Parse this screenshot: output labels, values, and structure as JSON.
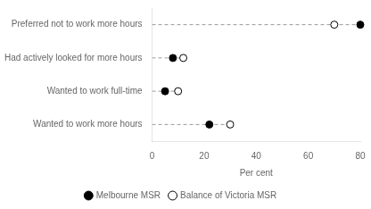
{
  "chart_data": {
    "type": "dot",
    "orientation": "horizontal",
    "categories": [
      "Wanted to work more hours",
      "Wanted to work full-time",
      "Had actively looked for more hours",
      "Preferred not to work more hours"
    ],
    "series": [
      {
        "name": "Melbourne MSR",
        "color": "#000000",
        "marker": "circle",
        "values": [
          22,
          5,
          8,
          80
        ]
      },
      {
        "name": "Balance of Victoria MSR",
        "color": "#ffffff",
        "marker": "circle",
        "values": [
          30,
          10,
          12,
          70
        ]
      }
    ],
    "xlabel": "Per cent",
    "xlim": [
      0,
      80
    ],
    "xticks": [
      0,
      20,
      40,
      60,
      80
    ],
    "grid": false,
    "legend": "bottom"
  }
}
